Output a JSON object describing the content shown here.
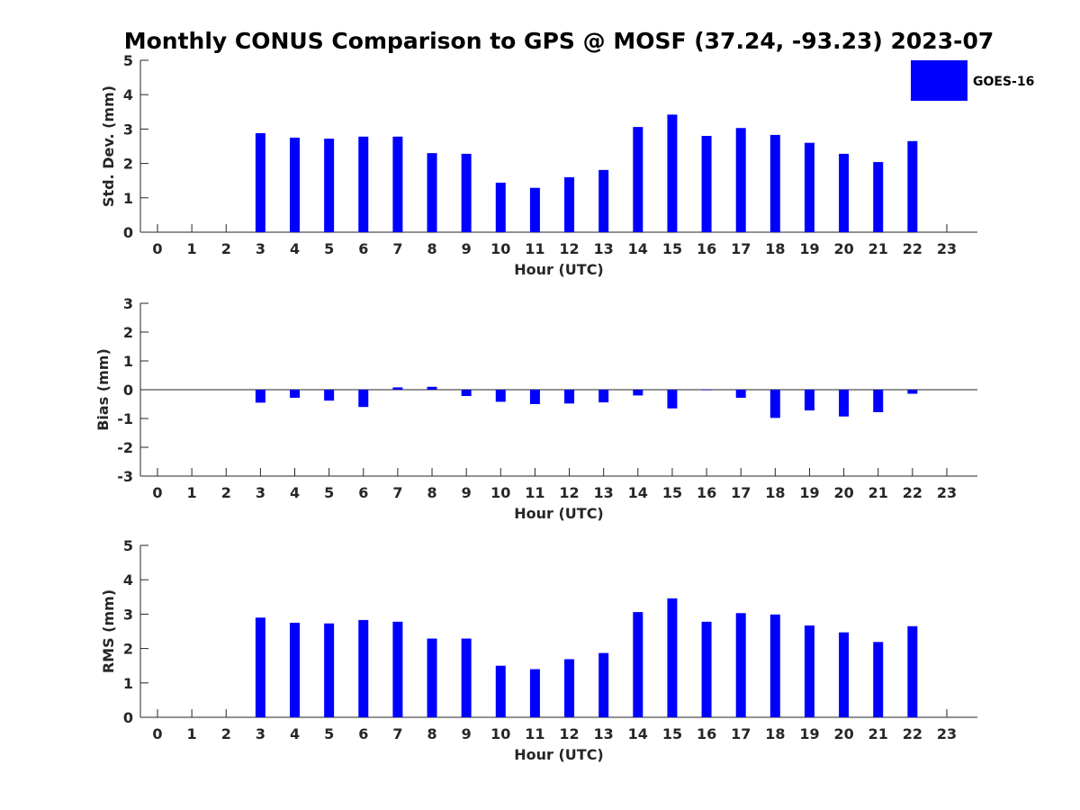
{
  "title": "Monthly CONUS Comparison to GPS @ MOSF (37.24, -93.23) 2023-07",
  "legend": {
    "label": "GOES-16",
    "color": "#0000ff"
  },
  "bar_color": "#0000ff",
  "chart_data": [
    {
      "type": "bar",
      "name": "std-dev",
      "xlabel": "Hour (UTC)",
      "ylabel": "Std. Dev. (mm)",
      "ylim": [
        0,
        5
      ],
      "yticks": [
        0,
        1,
        2,
        3,
        4,
        5
      ],
      "categories": [
        "0",
        "1",
        "2",
        "3",
        "4",
        "5",
        "6",
        "7",
        "8",
        "9",
        "10",
        "11",
        "12",
        "13",
        "14",
        "15",
        "16",
        "17",
        "18",
        "19",
        "20",
        "21",
        "22",
        "23"
      ],
      "series": [
        {
          "name": "GOES-16",
          "values": [
            null,
            null,
            null,
            2.88,
            2.75,
            2.72,
            2.78,
            2.78,
            2.3,
            2.28,
            1.44,
            1.29,
            1.6,
            1.81,
            3.06,
            3.42,
            2.8,
            3.03,
            2.83,
            2.6,
            2.28,
            2.04,
            2.65,
            null
          ]
        }
      ]
    },
    {
      "type": "bar",
      "name": "bias",
      "xlabel": "Hour (UTC)",
      "ylabel": "Bias (mm)",
      "ylim": [
        -3,
        3
      ],
      "yticks": [
        -3,
        -2,
        -1,
        0,
        1,
        2,
        3
      ],
      "zero_line": true,
      "categories": [
        "0",
        "1",
        "2",
        "3",
        "4",
        "5",
        "6",
        "7",
        "8",
        "9",
        "10",
        "11",
        "12",
        "13",
        "14",
        "15",
        "16",
        "17",
        "18",
        "19",
        "20",
        "21",
        "22",
        "23"
      ],
      "series": [
        {
          "name": "GOES-16",
          "values": [
            null,
            null,
            null,
            -0.45,
            -0.28,
            -0.38,
            -0.6,
            0.08,
            0.1,
            -0.22,
            -0.42,
            -0.5,
            -0.48,
            -0.44,
            -0.2,
            -0.65,
            -0.02,
            -0.28,
            -0.98,
            -0.72,
            -0.93,
            -0.78,
            -0.14,
            null
          ]
        }
      ]
    },
    {
      "type": "bar",
      "name": "rms",
      "xlabel": "Hour (UTC)",
      "ylabel": "RMS (mm)",
      "ylim": [
        0,
        5
      ],
      "yticks": [
        0,
        1,
        2,
        3,
        4,
        5
      ],
      "categories": [
        "0",
        "1",
        "2",
        "3",
        "4",
        "5",
        "6",
        "7",
        "8",
        "9",
        "10",
        "11",
        "12",
        "13",
        "14",
        "15",
        "16",
        "17",
        "18",
        "19",
        "20",
        "21",
        "22",
        "23"
      ],
      "series": [
        {
          "name": "GOES-16",
          "values": [
            null,
            null,
            null,
            2.9,
            2.75,
            2.73,
            2.83,
            2.78,
            2.29,
            2.29,
            1.5,
            1.4,
            1.69,
            1.87,
            3.06,
            3.46,
            2.78,
            3.03,
            2.99,
            2.67,
            2.47,
            2.19,
            2.65,
            null
          ]
        }
      ]
    }
  ]
}
